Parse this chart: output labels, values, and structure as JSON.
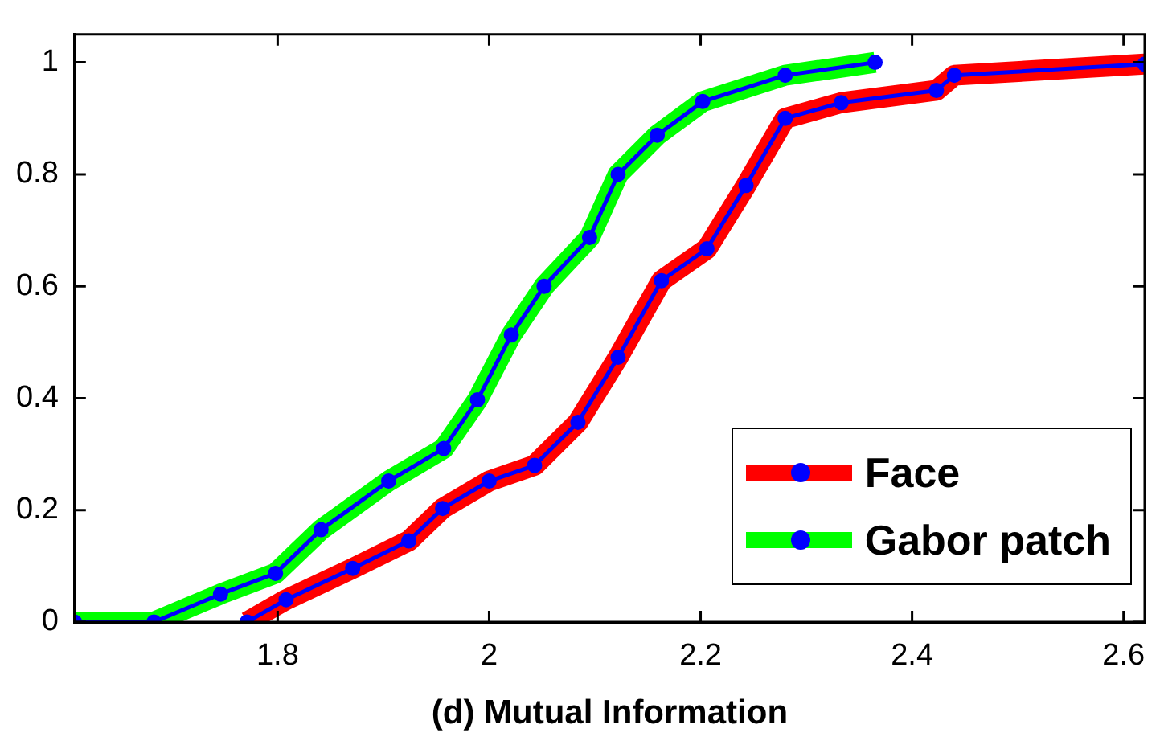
{
  "chart_data": {
    "type": "line",
    "xlabel": "(d) Mutual Information",
    "xlim": [
      1.608,
      2.62
    ],
    "xticks": [
      1.8,
      2,
      2.2,
      2.4,
      2.6
    ],
    "ylim": [
      0,
      1.05
    ],
    "yticks": [
      0,
      0.2,
      0.4,
      0.6,
      0.8,
      1
    ],
    "grid": false,
    "legend": "bottom right",
    "series": [
      {
        "name": "Face",
        "color": "#ff0000",
        "x": [
          1.771,
          1.808,
          1.871,
          1.924,
          1.956,
          2.0,
          2.043,
          2.084,
          2.122,
          2.163,
          2.206,
          2.243,
          2.28,
          2.333,
          2.423,
          2.44,
          2.62
        ],
        "values": [
          0,
          0.04,
          0.096,
          0.145,
          0.203,
          0.252,
          0.28,
          0.357,
          0.473,
          0.61,
          0.667,
          0.78,
          0.9,
          0.928,
          0.95,
          0.977,
          0.997
        ]
      },
      {
        "color": "#0000ff",
        "marker": "circle",
        "x": [
          1.771,
          1.808,
          1.871,
          1.924,
          1.956,
          2.0,
          2.043,
          2.084,
          2.122,
          2.163,
          2.206,
          2.243,
          2.28,
          2.333,
          2.423,
          2.44,
          2.62
        ],
        "values": [
          0,
          0.04,
          0.096,
          0.145,
          0.203,
          0.252,
          0.28,
          0.357,
          0.473,
          0.61,
          0.667,
          0.78,
          0.9,
          0.928,
          0.95,
          0.977,
          0.997
        ]
      },
      {
        "name": "Gabor patch",
        "color": "#00ff00",
        "x": [
          1.608,
          1.683,
          1.746,
          1.798,
          1.841,
          1.905,
          1.957,
          1.989,
          2.021,
          2.052,
          2.095,
          2.122,
          2.159,
          2.202,
          2.28,
          2.365
        ],
        "values": [
          0,
          0,
          0.05,
          0.087,
          0.165,
          0.252,
          0.31,
          0.397,
          0.513,
          0.6,
          0.687,
          0.8,
          0.87,
          0.93,
          0.977,
          1.0
        ]
      },
      {
        "color": "#0000ff",
        "marker": "circle",
        "x": [
          1.608,
          1.683,
          1.746,
          1.798,
          1.841,
          1.905,
          1.957,
          1.989,
          2.021,
          2.052,
          2.095,
          2.122,
          2.159,
          2.202,
          2.28,
          2.365
        ],
        "values": [
          0,
          0,
          0.05,
          0.087,
          0.165,
          0.252,
          0.31,
          0.397,
          0.513,
          0.6,
          0.687,
          0.8,
          0.87,
          0.93,
          0.977,
          1.0
        ]
      }
    ]
  }
}
